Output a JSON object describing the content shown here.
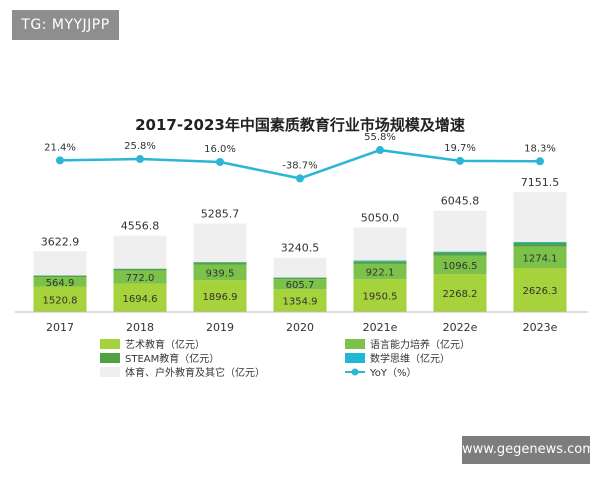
{
  "tag_label": "TG: MYYJJPP",
  "watermark_label": "www.gegenews.com",
  "chart_data": {
    "type": "bar",
    "title": "2017-2023年中国素质教育行业市场规模及增速",
    "categories": [
      "2017",
      "2018",
      "2019",
      "2020",
      "2021e",
      "2022e",
      "2023e"
    ],
    "totals": [
      3622.9,
      4556.8,
      5285.7,
      3240.5,
      5050.0,
      6045.8,
      7151.5
    ],
    "total_labels": [
      "3622.9",
      "4556.8",
      "5285.7",
      "3240.5",
      "5050.0",
      "6045.8",
      "7151.5"
    ],
    "series": [
      {
        "name": "艺术教育（亿元）",
        "values": [
          1520.8,
          1694.6,
          1896.9,
          1354.9,
          1950.5,
          2268.2,
          2626.3
        ],
        "labels": [
          "1520.8",
          "1694.6",
          "1896.9",
          "1354.9",
          "1950.5",
          "2268.2",
          "2626.3"
        ],
        "color": "#a6d23c"
      },
      {
        "name": "语言能力培养（亿元）",
        "values": [
          564.9,
          772.0,
          939.5,
          605.7,
          922.1,
          1096.5,
          1274.1
        ],
        "labels": [
          "564.9",
          "772.0",
          "939.5",
          "605.7",
          "922.1",
          "1096.5",
          "1274.1"
        ],
        "color": "#7cc24a"
      },
      {
        "name": "STEAM教育（亿元）",
        "values": [
          90,
          110,
          130,
          90,
          160,
          190,
          220
        ],
        "color": "#52a044"
      },
      {
        "name": "数学思维（亿元）",
        "values": [
          12,
          14,
          16,
          12,
          40,
          50,
          60
        ],
        "color": "#21b8d8"
      },
      {
        "name": "体育、户外教育及其它（亿元）",
        "values": [
          1435.2,
          1966.2,
          2303.3,
          1177.9,
          1977.4,
          2441.1,
          2971.1
        ],
        "color": "#efefef"
      }
    ],
    "yoy": {
      "name": "YoY（%）",
      "values": [
        21.4,
        25.8,
        16.0,
        -38.7,
        55.8,
        19.7,
        18.3
      ],
      "labels": [
        "21.4%",
        "25.8%",
        "16.0%",
        "-38.7%",
        "55.8%",
        "19.7%",
        "18.3%"
      ],
      "color": "#2cb5d6"
    },
    "legend": [
      {
        "label": "艺术教育（亿元）",
        "kind": "box",
        "color": "#a6d23c"
      },
      {
        "label": "语言能力培养（亿元）",
        "kind": "box",
        "color": "#7cc24a"
      },
      {
        "label": "STEAM教育（亿元）",
        "kind": "box",
        "color": "#52a044"
      },
      {
        "label": "数学思维（亿元）",
        "kind": "box",
        "color": "#21b8d8"
      },
      {
        "label": "体育、户外教育及其它（亿元）",
        "kind": "box",
        "color": "#efefef"
      },
      {
        "label": "YoY（%）",
        "kind": "line",
        "color": "#2cb5d6"
      }
    ],
    "legend_position": "bottom",
    "grid": false
  }
}
